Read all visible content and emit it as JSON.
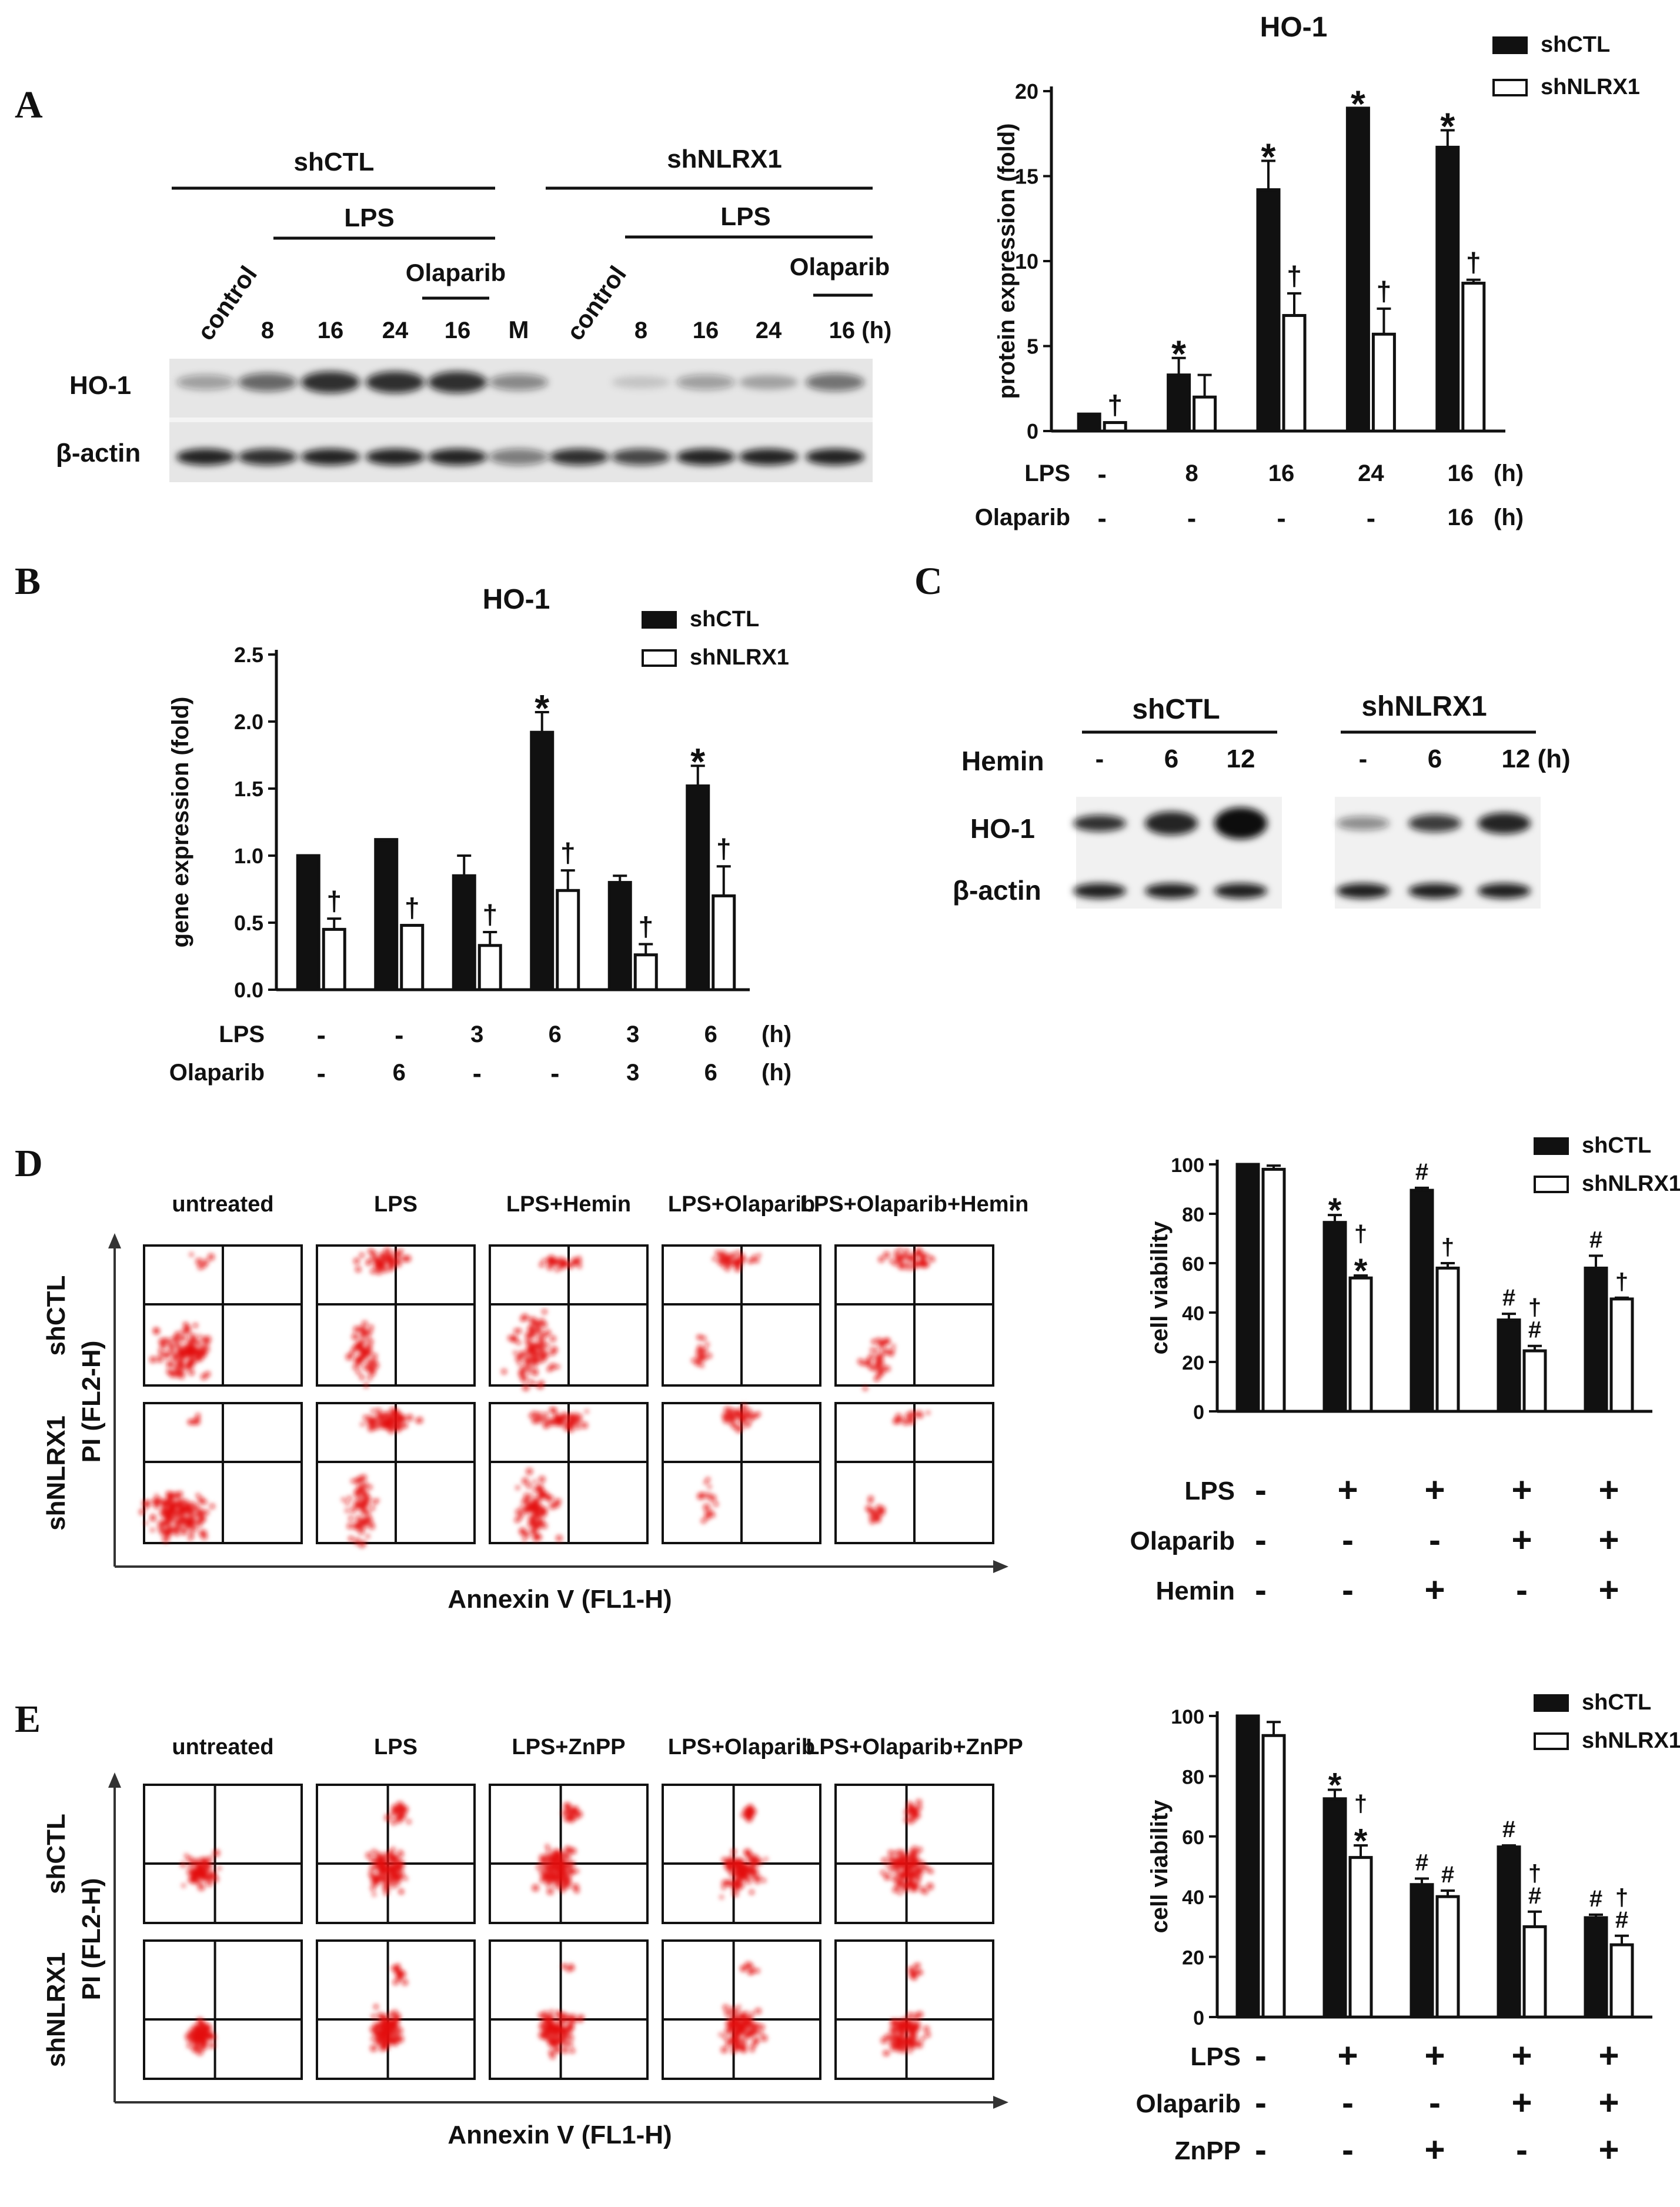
{
  "panels": {
    "A": {
      "letter": "A",
      "blot": {
        "groups": [
          "shCTL",
          "shNLRX1"
        ],
        "lps_label": "LPS",
        "olaparib_label": "Olaparib",
        "lanes_ctl": [
          "control",
          "8",
          "16",
          "24",
          "16"
        ],
        "marker": "M",
        "lanes_nlrx": [
          "control",
          "8",
          "16",
          "24",
          "16 (h)"
        ],
        "rows": [
          "HO-1",
          "β-actin"
        ]
      }
    },
    "B": {
      "letter": "B"
    },
    "C": {
      "letter": "C",
      "groups": [
        "shCTL",
        "shNLRX1"
      ],
      "hemin_label": "Hemin",
      "lanes_ctl": [
        "-",
        "6",
        "12"
      ],
      "lanes_nlrx": [
        "-",
        "6",
        "12 (h)"
      ],
      "rows": [
        "HO-1",
        "β-actin"
      ]
    },
    "D": {
      "letter": "D",
      "conditions": [
        "untreated",
        "LPS",
        "LPS+Hemin",
        "LPS+Olaparib",
        "LPS+Olaparib+Hemin"
      ],
      "rows": [
        "shCTL",
        "shNLRX1"
      ],
      "y_axis_label": "PI (FL2-H)",
      "x_axis_label": "Annexin V (FL1-H)"
    },
    "E": {
      "letter": "E",
      "conditions": [
        "untreated",
        "LPS",
        "LPS+ZnPP",
        "LPS+Olaparib",
        "LPS+Olaparib+ZnPP"
      ],
      "rows": [
        "shCTL",
        "shNLRX1"
      ],
      "y_axis_label": "PI (FL2-H)",
      "x_axis_label": "Annexin V (FL1-H)"
    }
  },
  "chart_data": [
    {
      "id": "A",
      "type": "bar",
      "title": "HO-1",
      "ylabel": "protein expression (fold)",
      "ylim": [
        0,
        20
      ],
      "yticks": [
        0,
        5,
        10,
        15,
        20
      ],
      "series": [
        {
          "name": "shCTL",
          "values": [
            1,
            3.3,
            14.2,
            19,
            16.7
          ],
          "errors": [
            0,
            1,
            1.7,
            0,
            1
          ],
          "marks": [
            "",
            "*",
            "*",
            "*",
            "*"
          ]
        },
        {
          "name": "shNLRX1",
          "values": [
            0.5,
            2,
            6.8,
            5.7,
            8.7
          ],
          "errors": [
            0,
            1.3,
            1.3,
            1.5,
            0.2
          ],
          "marks": [
            "†",
            "",
            "†",
            "†",
            "†"
          ]
        }
      ],
      "treatments": [
        {
          "label": "LPS",
          "values": [
            "-",
            "8",
            "16",
            "24",
            "16"
          ],
          "unit": "(h)"
        },
        {
          "label": "Olaparib",
          "values": [
            "-",
            "-",
            "-",
            "-",
            "16"
          ],
          "unit": "(h)"
        }
      ]
    },
    {
      "id": "B",
      "type": "bar",
      "title": "HO-1",
      "ylabel": "gene expression (fold)",
      "ylim": [
        0,
        2.5
      ],
      "yticks": [
        "0.0",
        "0.5",
        "1.0",
        "1.5",
        "2.0",
        "2.5"
      ],
      "series": [
        {
          "name": "shCTL",
          "values": [
            1,
            1.12,
            0.85,
            1.92,
            0.8,
            1.52
          ],
          "errors": [
            0,
            0,
            0.15,
            0.15,
            0.05,
            0.15
          ],
          "marks": [
            "",
            "",
            "",
            "*",
            "",
            "*"
          ]
        },
        {
          "name": "shNLRX1",
          "values": [
            0.45,
            0.48,
            0.33,
            0.74,
            0.26,
            0.7
          ],
          "errors": [
            0.08,
            0,
            0.1,
            0.15,
            0.08,
            0.22
          ],
          "marks": [
            "†",
            "†",
            "†",
            "†",
            "†",
            "†"
          ]
        }
      ],
      "treatments": [
        {
          "label": "LPS",
          "values": [
            "-",
            "-",
            "3",
            "6",
            "3",
            "6"
          ],
          "unit": "(h)"
        },
        {
          "label": "Olaparib",
          "values": [
            "-",
            "6",
            "-",
            "-",
            "3",
            "6"
          ],
          "unit": "(h)"
        }
      ]
    },
    {
      "id": "D",
      "type": "bar",
      "title": "",
      "ylabel": "cell viability",
      "ylim": [
        0,
        100
      ],
      "yticks": [
        0,
        20,
        40,
        60,
        80,
        100
      ],
      "series": [
        {
          "name": "shCTL",
          "values": [
            100,
            76.5,
            89.5,
            37,
            58
          ],
          "errors": [
            0,
            3,
            1,
            2.5,
            5
          ],
          "marks": [
            "",
            "*",
            "#",
            "#",
            "#"
          ]
        },
        {
          "name": "shNLRX1",
          "values": [
            98,
            54,
            58,
            24.5,
            45.5
          ],
          "errors": [
            1.5,
            1,
            2,
            2,
            0.5
          ],
          "marks": [
            "",
            "†|*",
            "†",
            "†|#",
            "†"
          ]
        }
      ],
      "treatments": [
        {
          "label": "LPS",
          "values": [
            "-",
            "+",
            "+",
            "+",
            "+"
          ],
          "unit": ""
        },
        {
          "label": "Olaparib",
          "values": [
            "-",
            "-",
            "-",
            "+",
            "+"
          ],
          "unit": ""
        },
        {
          "label": "Hemin",
          "values": [
            "-",
            "-",
            "+",
            "-",
            "+"
          ],
          "unit": ""
        }
      ]
    },
    {
      "id": "E",
      "type": "bar",
      "title": "",
      "ylabel": "cell viability",
      "ylim": [
        0,
        100
      ],
      "yticks": [
        0,
        20,
        40,
        60,
        80,
        100
      ],
      "series": [
        {
          "name": "shCTL",
          "values": [
            100,
            72.5,
            44,
            56.5,
            33
          ],
          "errors": [
            0,
            3,
            2,
            0.5,
            1
          ],
          "marks": [
            "",
            "*",
            "#",
            "#",
            "#"
          ]
        },
        {
          "name": "shNLRX1",
          "values": [
            93.5,
            53,
            40,
            30,
            24
          ],
          "errors": [
            4.5,
            4,
            2,
            5,
            3
          ],
          "marks": [
            "",
            "†|*",
            "#",
            "†|#",
            "†|#"
          ]
        }
      ],
      "treatments": [
        {
          "label": "LPS",
          "values": [
            "-",
            "+",
            "+",
            "+",
            "+"
          ],
          "unit": ""
        },
        {
          "label": "Olaparib",
          "values": [
            "-",
            "-",
            "-",
            "+",
            "+"
          ],
          "unit": ""
        },
        {
          "label": "ZnPP",
          "values": [
            "-",
            "-",
            "+",
            "-",
            "+"
          ],
          "unit": ""
        }
      ]
    }
  ]
}
